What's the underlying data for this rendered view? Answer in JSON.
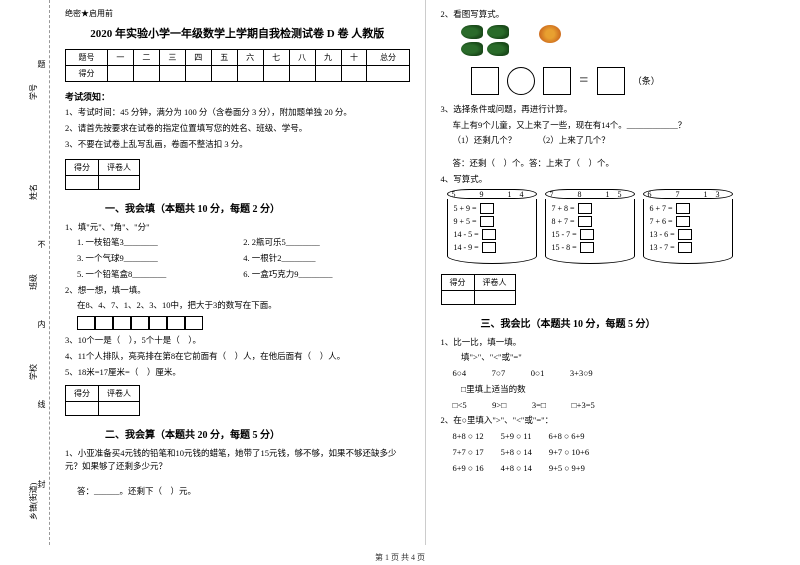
{
  "margin": {
    "labels": [
      "乡镇(街道)",
      "学校",
      "班级",
      "姓名",
      "学号"
    ],
    "dashes": [
      "封",
      "线",
      "内",
      "不",
      "题"
    ]
  },
  "header": {
    "confidential": "绝密★启用前",
    "title": "2020 年实验小学一年级数学上学期自我检测试卷 D 卷 人教版"
  },
  "scoreTable": {
    "cols": [
      "题号",
      "一",
      "二",
      "三",
      "四",
      "五",
      "六",
      "七",
      "八",
      "九",
      "十",
      "总分"
    ],
    "row2": "得分"
  },
  "notice": {
    "head": "考试须知：",
    "items": [
      "1、考试时间：45 分钟，满分为 100 分（含卷面分 3 分），附加题单独 20 分。",
      "2、请首先按要求在试卷的指定位置填写您的姓名、班级、学号。",
      "3、不要在试卷上乱写乱画，卷面不整洁扣 3 分。"
    ]
  },
  "eval": {
    "c1": "得分",
    "c2": "评卷人"
  },
  "sec1": {
    "title": "一、我会填（本题共 10 分，每题 2 分）",
    "q1": "1、填\"元\"、\"角\"、\"分\"",
    "q1a": "1. 一枝铅笔3________",
    "q1b": "2. 2瓶可乐5________",
    "q1c": "3. 一个气球9________",
    "q1d": "4. 一根针2________",
    "q1e": "5. 一个铅笔盒8________",
    "q1f": "6. 一盒巧克力9________",
    "q2": "2、想一想，填一填。",
    "q2t": "在8、4、7、1、2、3、10中，把大于3的数写在下面。",
    "q3": "3、10个一是（　），5个十是（　）。",
    "q4": "4、11个人排队，亮亮排在第8在它前面有（　）人，在他后面有（　）人。",
    "q5": "5、18米=17厘米=（　）厘米。"
  },
  "sec2": {
    "title": "二、我会算（本题共 20 分，每题 5 分）",
    "q1": "1、小亚准备买4元钱的铅笔和10元钱的蜡笔，她带了15元钱，够不够，如果不够还缺多少元？如果够了还剩多少元？",
    "ans": "答：______。还剩下（　）元。"
  },
  "right": {
    "q2": "2、看图写算式。",
    "tiao": "（条）",
    "q3": "3、选择条件或问题，再进行计算。",
    "q3t": "车上有9个儿童，又上来了一些，现在有14个。____________？",
    "q3a": "（1）还剩几个？　　　（2）上来了几个？",
    "q3ans": "答：还剩（　）个。答：上来了（　）个。",
    "q4": "4、写算式。",
    "cyl": [
      {
        "top": "5　9　14",
        "eqs": [
          "5 + 9 =",
          "9 + 5 =",
          "14 - 5 =",
          "14 - 9 ="
        ]
      },
      {
        "top": "7　8　15",
        "eqs": [
          "7 + 8 =",
          "8 + 7 =",
          "15 - 7 =",
          "15 - 8 ="
        ]
      },
      {
        "top": "6　7　13",
        "eqs": [
          "6 + 7 =",
          "7 + 6 =",
          "13 - 6 =",
          "13 - 7 ="
        ]
      }
    ]
  },
  "sec3": {
    "title": "三、我会比（本题共 10 分，每题 5 分）",
    "q1": "1、比一比，填一填。",
    "q1a": "　填\">\"、\"<\"或\"=\"",
    "r1": "6○4　　　7○7　　　0○1　　　3+3○9",
    "q1b": "　□里填上适当的数",
    "r2": "□<5　　　9>□　　　3=□　　　□+3=5",
    "q2": "2、在○里填入\">\"、\"<\"或\"=\"：",
    "r3": "8+8 ○ 12　　5+9 ○ 11　　6+8 ○ 6+9",
    "r4": "7+7 ○ 17　　5+8 ○ 14　　9+7 ○ 10+6",
    "r5": "6+9 ○ 16　　4+8 ○ 14　　9+5 ○ 9+9"
  },
  "footer": "第 1 页 共 4 页"
}
